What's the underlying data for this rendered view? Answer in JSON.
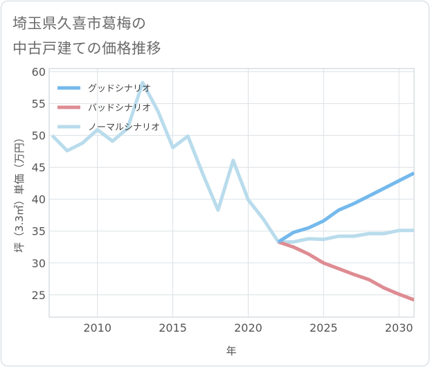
{
  "title_line1": "埼玉県久喜市葛梅の",
  "title_line2": "中古戸建ての価格推移",
  "chart_data": {
    "type": "line",
    "xlabel": "年",
    "ylabel": "坪（3.3㎡）単価（万円）",
    "xlim": [
      2006.8,
      2031
    ],
    "ylim": [
      21.5,
      60.5
    ],
    "x_ticks": [
      2010,
      2015,
      2020,
      2025,
      2030
    ],
    "y_ticks": [
      25,
      30,
      35,
      40,
      45,
      50,
      55,
      60
    ],
    "grid": true,
    "legend_position": "top-left",
    "series": [
      {
        "name": "グッドシナリオ",
        "color": "#74b9ec",
        "x": [
          2022,
          2023,
          2024,
          2025,
          2026,
          2027,
          2028,
          2029,
          2030,
          2031
        ],
        "y": [
          33.3,
          34.8,
          35.5,
          36.6,
          38.3,
          39.3,
          40.5,
          41.7,
          42.9,
          44.1
        ]
      },
      {
        "name": "バッドシナリオ",
        "color": "#de8c93",
        "x": [
          2022,
          2023,
          2024,
          2025,
          2026,
          2027,
          2028,
          2029,
          2030,
          2031
        ],
        "y": [
          33.3,
          32.5,
          31.4,
          30.0,
          29.1,
          28.2,
          27.4,
          26.1,
          25.1,
          24.2
        ]
      },
      {
        "name": "ノーマルシナリオ",
        "color": "#b9dcec",
        "x": [
          2007,
          2008,
          2009,
          2010,
          2011,
          2012,
          2013,
          2014,
          2015,
          2016,
          2017,
          2018,
          2019,
          2020,
          2021,
          2022,
          2023,
          2024,
          2025,
          2026,
          2027,
          2028,
          2029,
          2030,
          2031
        ],
        "y": [
          50.0,
          47.6,
          48.8,
          50.9,
          49.1,
          51.1,
          58.3,
          53.9,
          48.1,
          49.9,
          43.9,
          38.3,
          46.1,
          39.9,
          36.9,
          33.3,
          33.3,
          33.8,
          33.7,
          34.2,
          34.2,
          34.6,
          34.6,
          35.1,
          35.1
        ]
      }
    ]
  }
}
